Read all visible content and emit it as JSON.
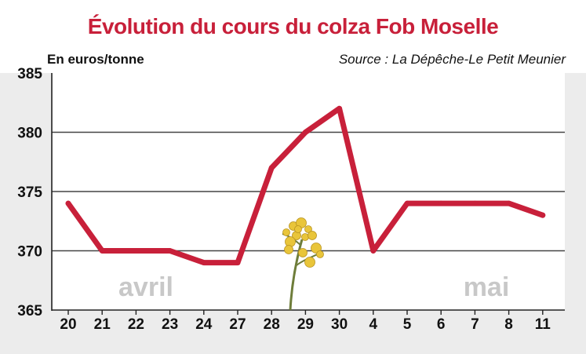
{
  "colors": {
    "title": "#c8203a",
    "line": "#c8203a",
    "frame_bg": "#ececec",
    "plot_bg": "#ffffff",
    "grid": "#444444",
    "month_label": "#c8c8c8",
    "flower": "#e9c53a",
    "stem": "#6e7d3a"
  },
  "icons": {
    "decoration": "rapeseed-flower-icon"
  },
  "chart_data": {
    "type": "line",
    "title": "Évolution du cours du colza Fob Moselle",
    "ylabel": "En euros/tonne",
    "source": "Source : La Dépêche-Le Petit Meunier",
    "categories": [
      "20",
      "21",
      "22",
      "23",
      "24",
      "27",
      "28",
      "29",
      "30",
      "4",
      "5",
      "6",
      "7",
      "8",
      "11"
    ],
    "series": [
      {
        "values": [
          374,
          370,
          370,
          370,
          369,
          369,
          377,
          380,
          382,
          370,
          374,
          374,
          374,
          374,
          373
        ]
      }
    ],
    "ylim": [
      365,
      385
    ],
    "yticks": [
      "365",
      "370",
      "375",
      "380",
      "385"
    ],
    "grid": true,
    "annotations": [
      "avril",
      "mai"
    ]
  }
}
